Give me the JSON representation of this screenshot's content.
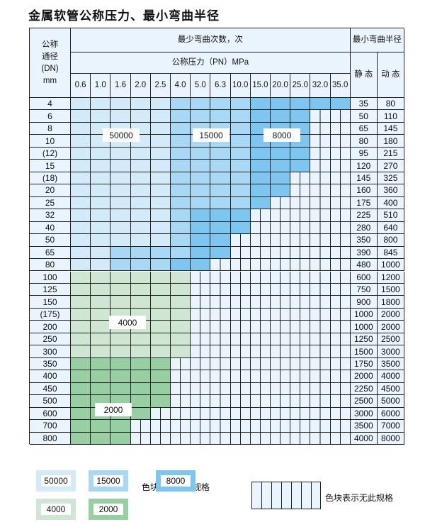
{
  "title": "金属软管公称压力、最小弯曲半径",
  "header": {
    "dn_label": [
      "公称",
      "通径",
      "(DN)",
      "mm"
    ],
    "cycles_label": "最少弯曲次数，次",
    "pressure_label": "公称压力（PN）MPa",
    "radius_label": "最小弯曲半径",
    "static_label": "静 态",
    "dynamic_label": "动 态",
    "pressures": [
      "0.6",
      "1.0",
      "1.6",
      "2.0",
      "2.5",
      "4.0",
      "5.0",
      "6.3",
      "10.0",
      "15.0",
      "20.0",
      "25.0",
      "32.0",
      "35.0"
    ]
  },
  "zone_colors": {
    "A": "#d3eaf9",
    "B": "#a8d8f4",
    "C": "#7ec6ef",
    "D": "#cfe6d3",
    "E": "#97cfa3",
    "-": "#eaf4fc"
  },
  "rows": [
    {
      "dn": "4",
      "static": "35",
      "dynamic": "80",
      "cells": "AAAAABBBBCCCCC"
    },
    {
      "dn": "6",
      "static": "50",
      "dynamic": "110",
      "cells": "AAAAABBBBCCC--"
    },
    {
      "dn": "8",
      "static": "65",
      "dynamic": "145",
      "cells": "AAAAABBBBCCC--"
    },
    {
      "dn": "10",
      "static": "80",
      "dynamic": "180",
      "cells": "AAAAABBBBCCC--"
    },
    {
      "dn": "(12)",
      "static": "95",
      "dynamic": "215",
      "cells": "AAAAABBBBCCC--"
    },
    {
      "dn": "15",
      "static": "120",
      "dynamic": "270",
      "cells": "AAAAABBBBCCC--"
    },
    {
      "dn": "(18)",
      "static": "145",
      "dynamic": "325",
      "cells": "AAAAABBBBCC---"
    },
    {
      "dn": "20",
      "static": "160",
      "dynamic": "360",
      "cells": "AAAAABBBBCC---"
    },
    {
      "dn": "25",
      "static": "175",
      "dynamic": "400",
      "cells": "AAAAABBBBC----"
    },
    {
      "dn": "32",
      "static": "225",
      "dynamic": "510",
      "cells": "AAAAABCCC-----"
    },
    {
      "dn": "40",
      "static": "280",
      "dynamic": "640",
      "cells": "AAAAABCCC-----"
    },
    {
      "dn": "50",
      "static": "350",
      "dynamic": "800",
      "cells": "AAAAABCC------"
    },
    {
      "dn": "65",
      "static": "390",
      "dynamic": "845",
      "cells": "AABBBBCC------"
    },
    {
      "dn": "80",
      "static": "480",
      "dynamic": "1000",
      "cells": "AABBBCC-------"
    },
    {
      "dn": "100",
      "static": "600",
      "dynamic": "1200",
      "cells": "DDDDDD--------"
    },
    {
      "dn": "125",
      "static": "750",
      "dynamic": "1500",
      "cells": "DDDDDD--------"
    },
    {
      "dn": "150",
      "static": "900",
      "dynamic": "1800",
      "cells": "DDDDDD--------"
    },
    {
      "dn": "(175)",
      "static": "1000",
      "dynamic": "2000",
      "cells": "DDDDDD--------"
    },
    {
      "dn": "200",
      "static": "1000",
      "dynamic": "2000",
      "cells": "DDDDDD--------"
    },
    {
      "dn": "250",
      "static": "1250",
      "dynamic": "2500",
      "cells": "DDDDDD--------"
    },
    {
      "dn": "300",
      "static": "1500",
      "dynamic": "3000",
      "cells": "DDDDDD--------"
    },
    {
      "dn": "350",
      "static": "1750",
      "dynamic": "3500",
      "cells": "EEEEE---------"
    },
    {
      "dn": "400",
      "static": "2000",
      "dynamic": "4000",
      "cells": "EEEEE---------"
    },
    {
      "dn": "450",
      "static": "2250",
      "dynamic": "4500",
      "cells": "EEEEE---------"
    },
    {
      "dn": "500",
      "static": "2500",
      "dynamic": "5000",
      "cells": "EEEEE---------"
    },
    {
      "dn": "600",
      "static": "3000",
      "dynamic": "6000",
      "cells": "EEEE----------"
    },
    {
      "dn": "700",
      "static": "3500",
      "dynamic": "7000",
      "cells": "EEE-----------"
    },
    {
      "dn": "800",
      "static": "4000",
      "dynamic": "8000",
      "cells": "EEE-----------"
    }
  ],
  "zone_labels": {
    "A": "50000",
    "B": "15000",
    "C": "8000",
    "D": "4000",
    "E": "2000"
  },
  "legend": {
    "items": [
      {
        "zone": "A",
        "label": "50000"
      },
      {
        "zone": "B",
        "label": "15000"
      },
      {
        "zone": "C",
        "label": "8000"
      },
      {
        "zone": "D",
        "label": "4000"
      },
      {
        "zone": "E",
        "label": "2000"
      }
    ],
    "available_text": "色块表示有此规格",
    "unavailable_text": "色块表示无此规格"
  }
}
